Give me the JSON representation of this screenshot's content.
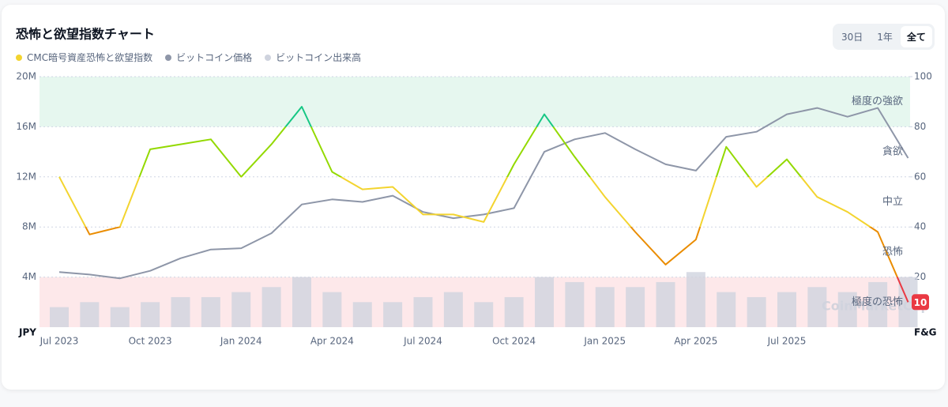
{
  "chart_data": {
    "type": "line",
    "title": "恐怖と欲望指数チャート",
    "range_buttons": [
      "30日",
      "1年",
      "全て"
    ],
    "active_range": "全て",
    "categories": [
      "Jul 2023",
      null,
      null,
      "Oct 2023",
      null,
      null,
      "Jan 2024",
      null,
      null,
      "Apr 2024",
      null,
      null,
      "Jul 2024",
      null,
      null,
      "Oct 2024",
      null,
      null,
      "Jan 2025",
      null,
      null,
      "Apr 2025",
      null,
      null,
      "Jul 2025",
      null,
      null,
      null,
      null
    ],
    "series": [
      {
        "name": "CMC暗号資産恐怖と欲望指数",
        "color": "#f3d42f",
        "axis": "y2",
        "values": [
          60,
          37,
          40,
          71,
          73,
          75,
          60,
          73,
          88,
          62,
          55,
          56,
          45,
          45,
          42,
          65,
          85,
          68,
          52,
          38,
          25,
          35,
          72,
          56,
          67,
          52,
          46,
          38,
          10
        ]
      },
      {
        "name": "ビットコイン価格",
        "color": "#8e96a8",
        "axis": "y",
        "values": [
          4400000,
          4200000,
          3900000,
          4500000,
          5500000,
          6200000,
          6300000,
          7500000,
          9800000,
          10200000,
          10000000,
          10500000,
          9200000,
          8700000,
          9000000,
          9500000,
          14000000,
          15000000,
          15500000,
          14200000,
          13000000,
          12500000,
          15200000,
          15600000,
          17000000,
          17500000,
          16800000,
          17500000,
          13500000
        ]
      },
      {
        "name": "ビットコイン出来高",
        "color": "#cfd3de",
        "axis": "y3",
        "values": [
          8,
          10,
          8,
          10,
          12,
          12,
          14,
          16,
          20,
          14,
          10,
          10,
          12,
          14,
          10,
          12,
          20,
          18,
          16,
          16,
          18,
          22,
          14,
          12,
          14,
          16,
          14,
          18,
          20
        ]
      }
    ],
    "ylim": [
      0,
      20000000
    ],
    "yticks": [
      {
        "value": 4000000,
        "label": "4M"
      },
      {
        "value": 8000000,
        "label": "8M"
      },
      {
        "value": 12000000,
        "label": "12M"
      },
      {
        "value": 16000000,
        "label": "16M"
      },
      {
        "value": 20000000,
        "label": "20M"
      }
    ],
    "y2lim": [
      0,
      100
    ],
    "y2ticks": [
      20,
      40,
      60,
      80,
      100
    ],
    "y3lim": [
      0,
      100
    ],
    "y_label": "JPY",
    "y2_label": "F&G",
    "grid": true,
    "zones": [
      {
        "label": "極度の恐怖",
        "range": [
          0,
          20
        ],
        "color": "#ea3943",
        "band_color": "#fde8ea"
      },
      {
        "label": "恐怖",
        "range": [
          20,
          40
        ],
        "color": "#ea8c00"
      },
      {
        "label": "中立",
        "range": [
          40,
          60
        ],
        "color": "#f3d42f"
      },
      {
        "label": "貪欲",
        "range": [
          60,
          80
        ],
        "color": "#93d900"
      },
      {
        "label": "極度の強欲",
        "range": [
          80,
          100
        ],
        "color": "#16c784",
        "band_color": "#e6f7ef"
      }
    ],
    "watermark": "CoinMarketCap"
  }
}
